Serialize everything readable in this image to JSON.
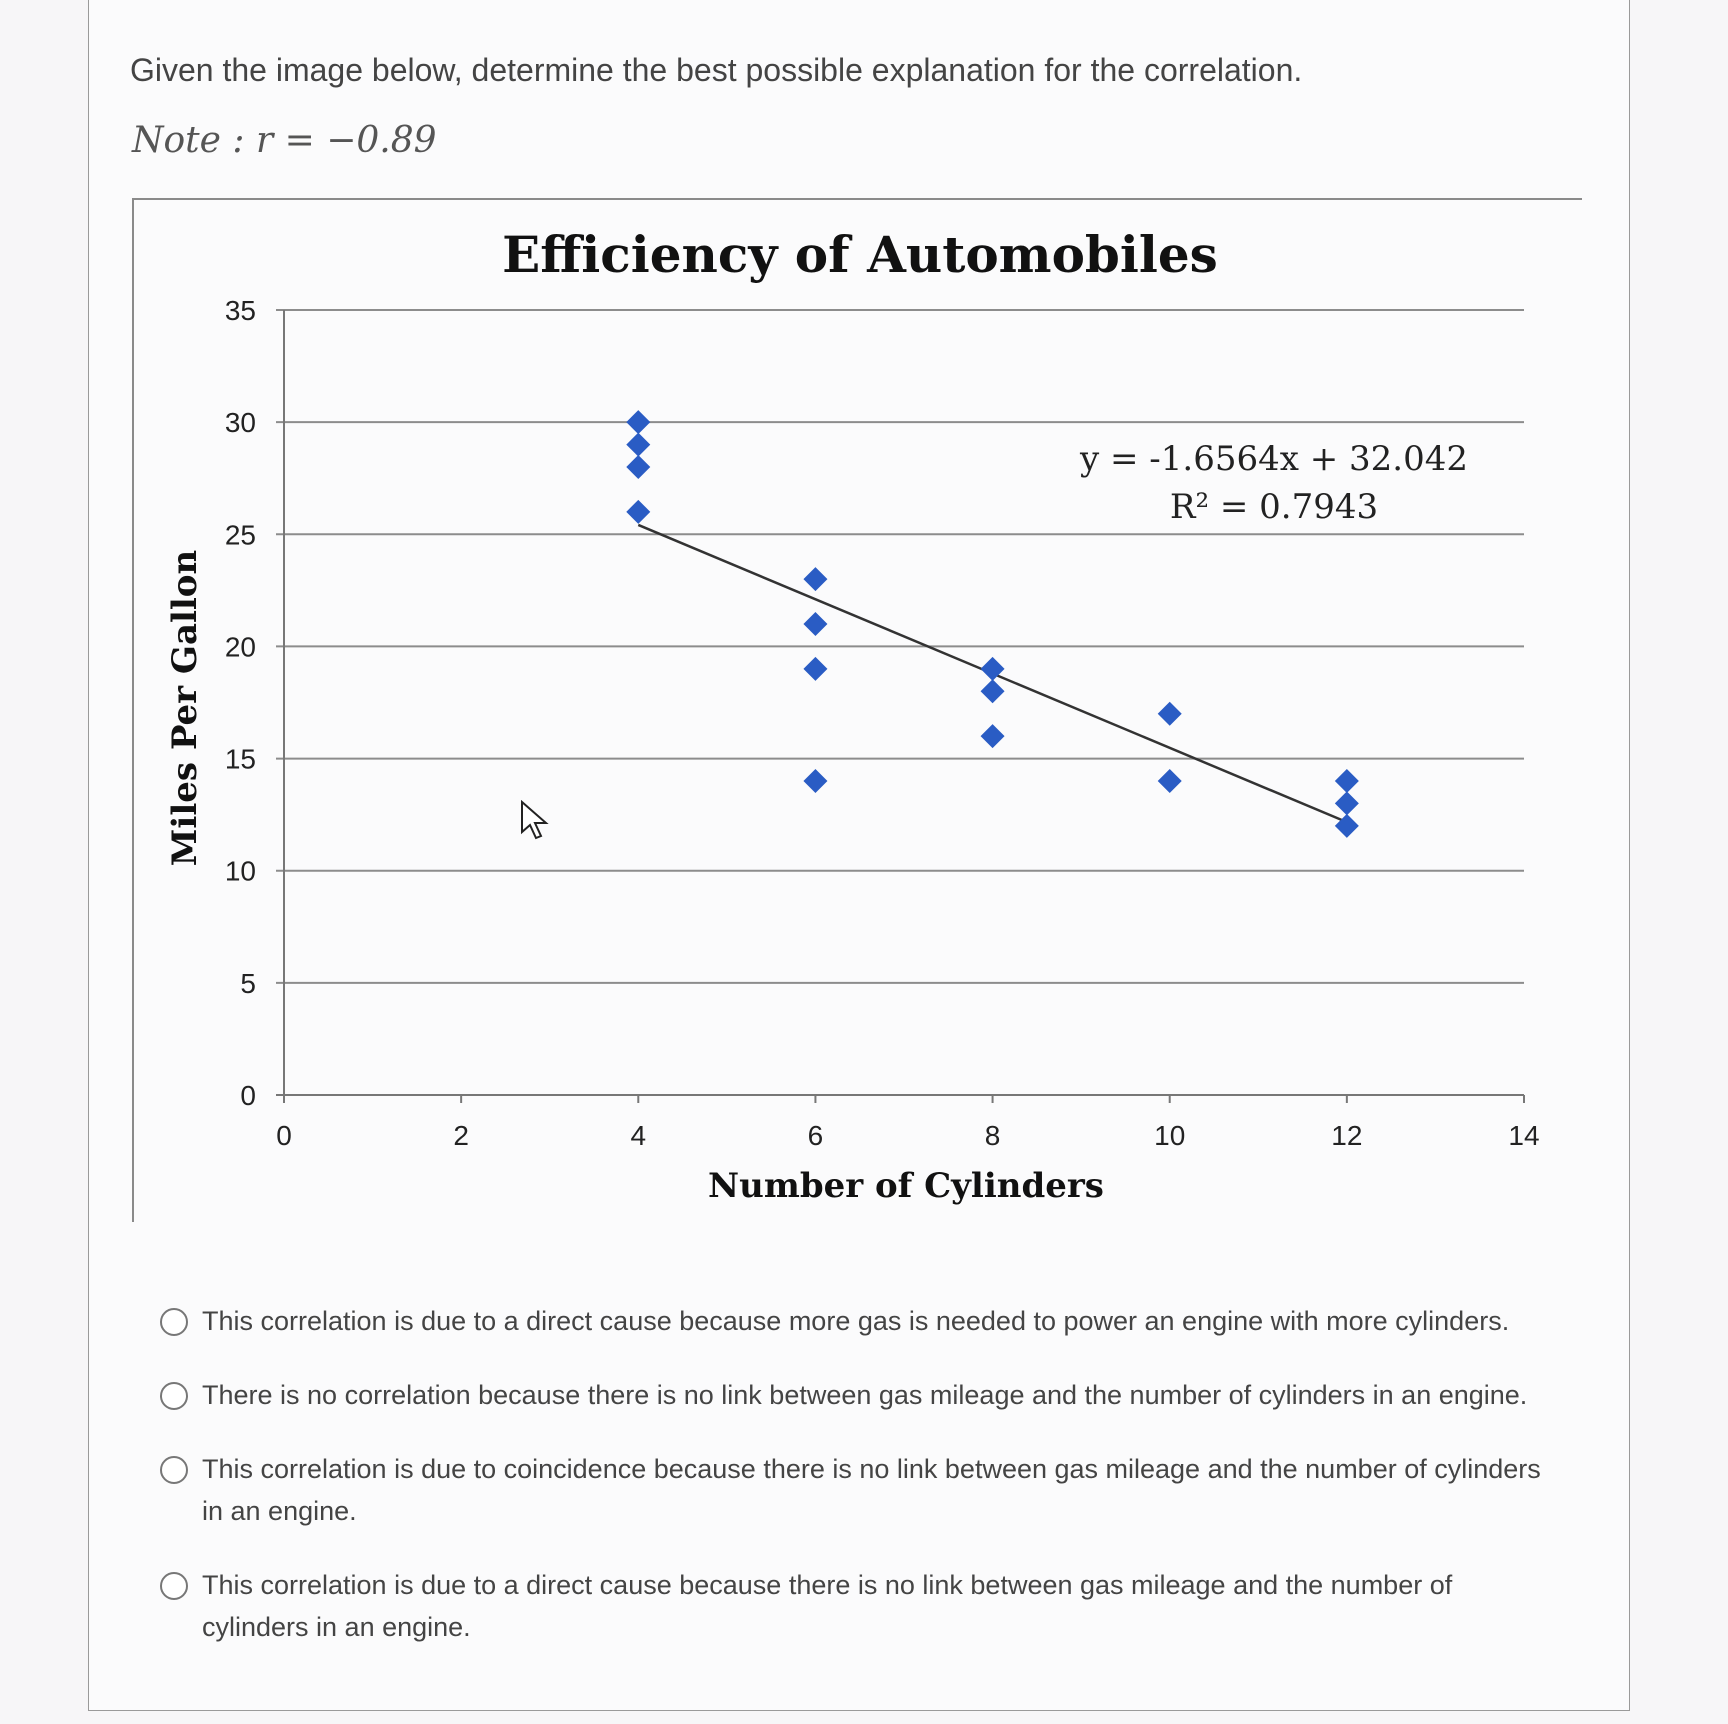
{
  "question": {
    "prompt": "Given the image below, determine the best possible explanation for the correlation.",
    "note": "Note : r = −0.89"
  },
  "options": [
    "This correlation is due to a direct cause because more gas is needed to power an engine with more cylinders.",
    "There is no correlation because there is no link between gas mileage and the number of cylinders in an engine.",
    "This correlation is due to coincidence because there is no link between gas mileage and the number of cylinders in an engine.",
    "This correlation is due to a direct cause because there is no link between gas mileage and the number of cylinders in an engine."
  ],
  "chart_data": {
    "type": "scatter",
    "title": "Efficiency of Automobiles",
    "xlabel": "Number of Cylinders",
    "ylabel": "Miles Per Gallon",
    "xlim": [
      0,
      14
    ],
    "ylim": [
      0,
      35
    ],
    "xticks": [
      0,
      2,
      4,
      6,
      8,
      10,
      12,
      14
    ],
    "yticks": [
      0,
      5,
      10,
      15,
      20,
      25,
      30,
      35
    ],
    "grid": "horizontal",
    "marker_color": "#2a5cc4",
    "points": [
      {
        "x": 4,
        "y": 30
      },
      {
        "x": 4,
        "y": 29
      },
      {
        "x": 4,
        "y": 28
      },
      {
        "x": 4,
        "y": 26
      },
      {
        "x": 6,
        "y": 23
      },
      {
        "x": 6,
        "y": 21
      },
      {
        "x": 6,
        "y": 19
      },
      {
        "x": 6,
        "y": 14
      },
      {
        "x": 8,
        "y": 19
      },
      {
        "x": 8,
        "y": 18
      },
      {
        "x": 8,
        "y": 16
      },
      {
        "x": 10,
        "y": 17
      },
      {
        "x": 10,
        "y": 14
      },
      {
        "x": 12,
        "y": 14
      },
      {
        "x": 12,
        "y": 13
      },
      {
        "x": 12,
        "y": 12
      }
    ],
    "trendline": {
      "slope": -1.6564,
      "intercept": 32.042,
      "x_range": [
        4,
        12
      ]
    },
    "annotations": [
      "y = -1.6564x + 32.042",
      "R² = 0.7943"
    ]
  }
}
